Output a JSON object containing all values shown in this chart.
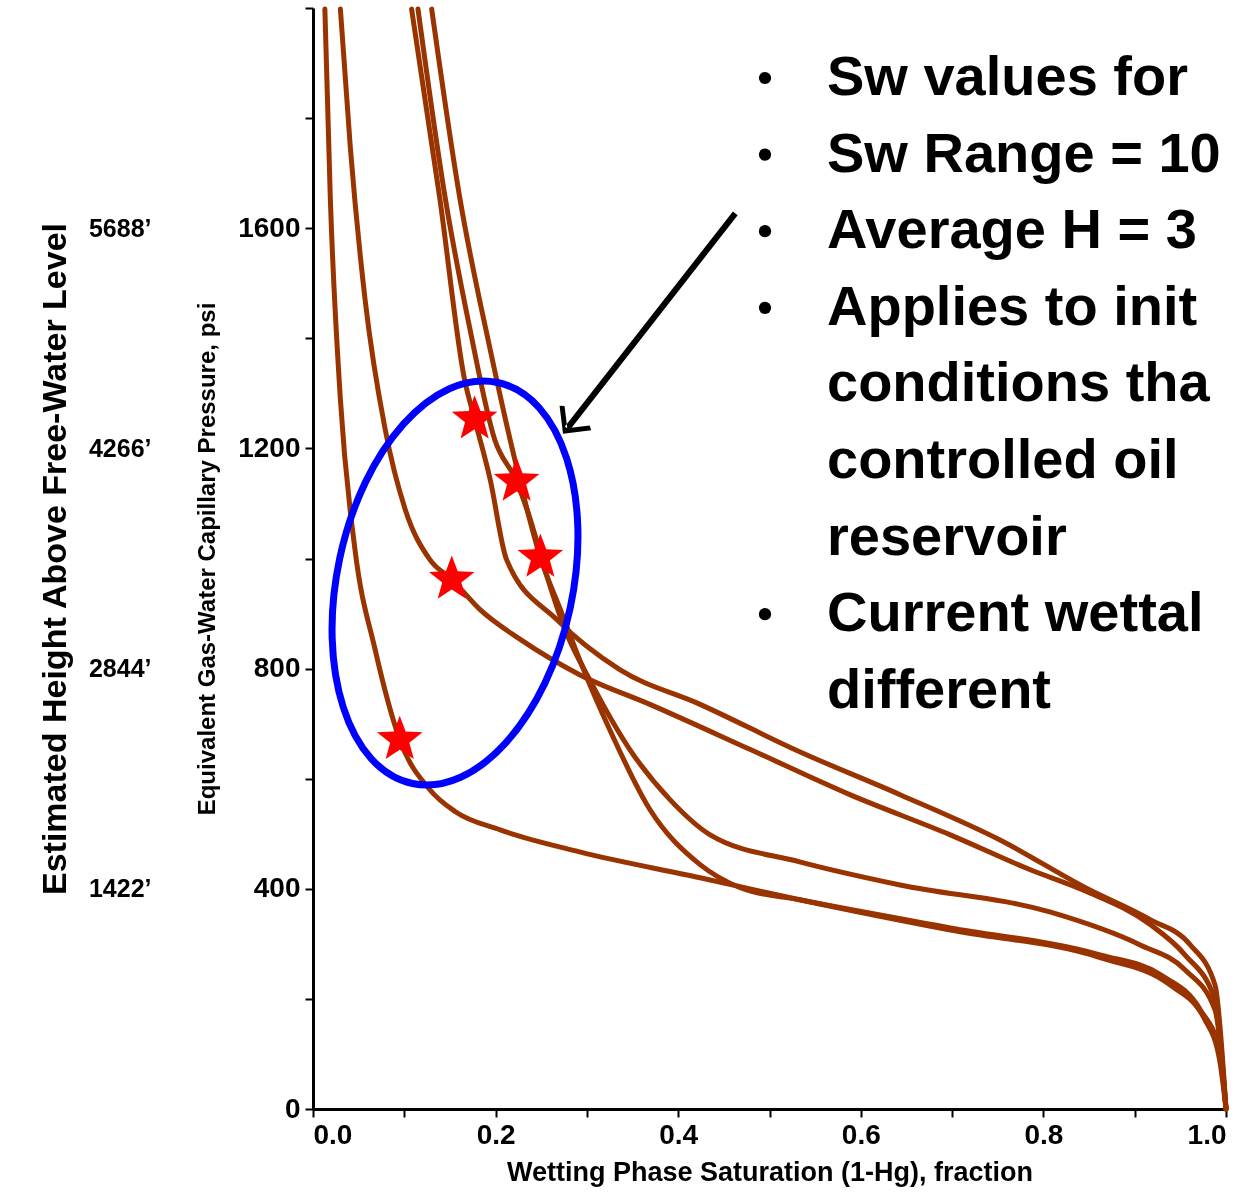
{
  "chart_data": {
    "type": "line",
    "xlabel": "Wetting Phase Saturation (1-Hg), fraction",
    "ylabel": "Equivalent Gas-Water Capillary Pressure, psi",
    "y2label": "Estimated Height Above Free-Water Level",
    "xlim": [
      0,
      1
    ],
    "ylim": [
      0,
      2000
    ],
    "y2lim": [
      0,
      7110
    ],
    "xticks": [
      {
        "value": 0,
        "label": "0.0"
      },
      {
        "value": 0.1,
        "label": null
      },
      {
        "value": 0.2,
        "label": "0.2"
      },
      {
        "value": 0.3,
        "label": null
      },
      {
        "value": 0.4,
        "label": "0.4"
      },
      {
        "value": 0.5,
        "label": null
      },
      {
        "value": 0.6,
        "label": "0.6"
      },
      {
        "value": 0.7,
        "label": null
      },
      {
        "value": 0.8,
        "label": "0.8"
      },
      {
        "value": 0.9,
        "label": null
      },
      {
        "value": 1,
        "label": "1.0"
      }
    ],
    "yticks": [
      0,
      {
        "value": 200,
        "label": null
      },
      400,
      {
        "value": 600,
        "label": null
      },
      800,
      {
        "value": 1000,
        "label": null
      },
      1200,
      {
        "value": 1400,
        "label": null
      },
      1600,
      {
        "value": 1800,
        "label": null
      },
      {
        "value": 2000,
        "label": null
      }
    ],
    "y2ticks": [
      {
        "value": 1422,
        "label": "1422’"
      },
      {
        "value": 2844,
        "label": "2844’"
      },
      {
        "value": 4266,
        "label": "4266’"
      },
      {
        "value": 5688,
        "label": "5688’"
      }
    ],
    "grid": false,
    "line_style": "solid",
    "series": [
      {
        "color": "#993300",
        "x": [
          0.013,
          0.019,
          0.03,
          0.046,
          0.068,
          0.095,
          0.128,
          0.156,
          0.205,
          0.292,
          0.424,
          0.533,
          0.698,
          0.862,
          0.939,
          0.977,
          0.993,
          1.0
        ],
        "values": [
          1998,
          1653,
          1289,
          1016,
          835,
          671,
          580,
          540,
          507,
          467,
          420,
          380,
          325,
          275,
          225,
          162,
          89,
          0
        ]
      },
      {
        "color": "#993300",
        "x": [
          0.03,
          0.041,
          0.057,
          0.079,
          0.101,
          0.128,
          0.152,
          0.183,
          0.227,
          0.292,
          0.369,
          0.479,
          0.588,
          0.698,
          0.785,
          0.846,
          0.917,
          0.955,
          0.988,
          1.0
        ],
        "values": [
          1998,
          1744,
          1471,
          1235,
          1089,
          998,
          962,
          907,
          853,
          789,
          735,
          653,
          571,
          498,
          435,
          396,
          335,
          280,
          198,
          0
        ]
      },
      {
        "color": "#993300",
        "x": [
          0.108,
          0.139,
          0.166,
          0.177,
          0.194,
          0.212,
          0.267,
          0.336,
          0.424,
          0.533,
          0.643,
          0.752,
          0.846,
          0.917,
          0.961,
          0.988,
          1.0
        ],
        "values": [
          1998,
          1653,
          1325,
          1253,
          1144,
          998,
          889,
          798,
          735,
          649,
          571,
          489,
          402,
          344,
          298,
          225,
          0
        ]
      },
      {
        "color": "#993300",
        "x": [
          0.115,
          0.145,
          0.172,
          0.199,
          0.223,
          0.238,
          0.254,
          0.276,
          0.303,
          0.347,
          0.391,
          0.435,
          0.533,
          0.643,
          0.807,
          0.906,
          0.955,
          0.988,
          1.0
        ],
        "values": [
          1998,
          1653,
          1416,
          1216,
          1140,
          1071,
          980,
          871,
          780,
          653,
          562,
          498,
          449,
          407,
          358,
          298,
          253,
          180,
          0
        ]
      },
      {
        "color": "#993300",
        "x": [
          0.13,
          0.161,
          0.194,
          0.221,
          0.249,
          0.271,
          0.292,
          0.325,
          0.369,
          0.424,
          0.468,
          0.533,
          0.698,
          0.862,
          0.928,
          0.972,
          0.993,
          1.0
        ],
        "values": [
          1998,
          1653,
          1380,
          1180,
          1002,
          907,
          816,
          689,
          544,
          444,
          402,
          380,
          329,
          280,
          244,
          180,
          107,
          0
        ]
      },
      {
        "type": "scatter",
        "marker": "star",
        "color": "#ff0000",
        "x": [
          0.095,
          0.152,
          0.177,
          0.223,
          0.249
        ],
        "values": [
          671,
          962,
          1253,
          1140,
          1002
        ]
      }
    ],
    "annotations": [
      "Sw values for",
      "Sw Range = 10",
      "Average H = 3",
      "Applies to init\nconditions tha\ncontrolled oil\nreservoir",
      "Current wettal\ndifferent"
    ]
  }
}
